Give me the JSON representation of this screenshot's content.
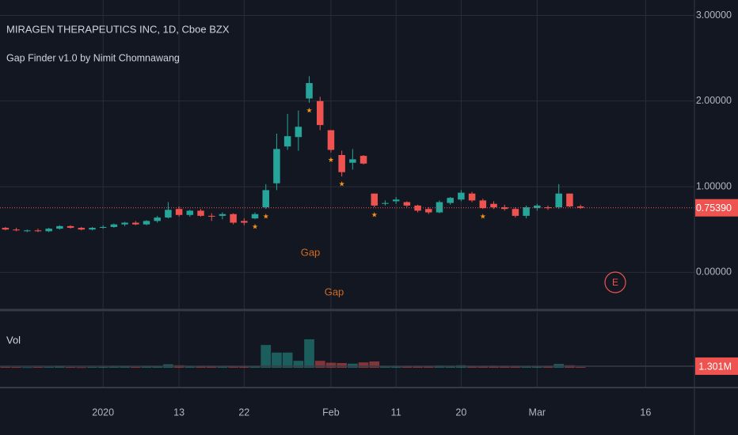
{
  "chart_data": {
    "type": "candlestick",
    "title": "MIRAGEN THERAPEUTICS INC, 1D, Cboe BZX",
    "subtitle": "Gap Finder v1.0 by Nimit Chomnawang",
    "volume_title": "Vol",
    "categories": [
      null,
      null,
      null,
      null,
      null,
      null,
      null,
      null,
      null,
      "2020",
      null,
      null,
      null,
      null,
      null,
      null,
      "13",
      null,
      null,
      null,
      null,
      null,
      "22",
      null,
      null,
      null,
      null,
      null,
      null,
      null,
      "Feb",
      null,
      null,
      null,
      null,
      null,
      "11",
      null,
      null,
      null,
      null,
      null,
      "20",
      null,
      null,
      null,
      null,
      null,
      null,
      "Mar",
      null,
      null,
      null,
      null,
      null,
      null,
      null,
      null,
      null,
      "16",
      null,
      null,
      null,
      null
    ],
    "open": [
      0.52,
      0.5,
      0.48,
      0.49,
      0.48,
      0.51,
      0.54,
      0.52,
      0.5,
      0.52,
      0.53,
      0.56,
      0.58,
      0.56,
      0.6,
      0.64,
      0.74,
      0.67,
      0.72,
      0.66,
      0.66,
      0.68,
      0.6,
      0.63,
      0.76,
      1.04,
      1.47,
      1.58,
      2.03,
      2.0,
      1.66,
      1.37,
      1.28,
      1.36,
      0.92,
      0.8,
      0.83,
      0.82,
      0.78,
      0.74,
      0.7,
      0.81,
      0.85,
      0.92,
      0.84,
      0.8,
      0.76,
      0.74,
      0.66,
      0.75,
      0.76,
      0.76,
      0.92,
      0.77,
      null,
      null,
      null,
      null,
      null,
      null,
      null,
      null,
      null,
      null
    ],
    "high": [
      0.53,
      0.52,
      0.5,
      0.51,
      0.52,
      0.55,
      0.55,
      0.53,
      0.53,
      0.55,
      0.57,
      0.59,
      0.6,
      0.61,
      0.66,
      0.82,
      0.77,
      0.73,
      0.74,
      0.69,
      0.7,
      0.69,
      0.63,
      0.7,
      1.03,
      1.62,
      1.85,
      1.89,
      2.29,
      2.05,
      1.66,
      1.42,
      1.44,
      1.37,
      0.92,
      0.84,
      0.88,
      0.83,
      0.79,
      0.76,
      0.84,
      0.88,
      0.96,
      0.94,
      0.86,
      0.83,
      0.79,
      0.76,
      0.78,
      0.8,
      0.78,
      1.03,
      0.92,
      0.79,
      null,
      null,
      null,
      null,
      null,
      null,
      null,
      null,
      null,
      null
    ],
    "low": [
      0.49,
      0.48,
      0.47,
      0.47,
      0.47,
      0.5,
      0.51,
      0.49,
      0.49,
      0.51,
      0.52,
      0.54,
      0.55,
      0.55,
      0.58,
      0.63,
      0.65,
      0.65,
      0.65,
      0.6,
      0.62,
      0.56,
      0.55,
      0.62,
      0.74,
      0.96,
      1.43,
      1.42,
      1.98,
      1.66,
      1.4,
      1.12,
      1.2,
      1.26,
      0.76,
      0.78,
      0.8,
      0.76,
      0.7,
      0.68,
      0.69,
      0.79,
      0.83,
      0.82,
      0.74,
      0.74,
      0.72,
      0.64,
      0.63,
      0.72,
      0.73,
      0.74,
      0.76,
      0.74,
      null,
      null,
      null,
      null,
      null,
      null,
      null,
      null,
      null,
      null
    ],
    "close": [
      0.5,
      0.49,
      0.49,
      0.48,
      0.51,
      0.54,
      0.52,
      0.5,
      0.52,
      0.53,
      0.56,
      0.58,
      0.56,
      0.6,
      0.64,
      0.73,
      0.67,
      0.72,
      0.66,
      0.65,
      0.68,
      0.58,
      0.58,
      0.68,
      0.96,
      1.44,
      1.59,
      1.7,
      2.21,
      1.72,
      1.43,
      1.17,
      1.32,
      1.27,
      0.78,
      0.81,
      0.85,
      0.78,
      0.72,
      0.7,
      0.82,
      0.87,
      0.93,
      0.84,
      0.75,
      0.76,
      0.74,
      0.66,
      0.76,
      0.78,
      0.75,
      0.92,
      0.77,
      0.7539,
      null,
      null,
      null,
      null,
      null,
      null,
      null,
      null,
      null,
      null
    ],
    "volume": [
      1500000,
      1200000,
      1000000,
      1300000,
      1400000,
      2000000,
      1200000,
      1000000,
      1300000,
      1500000,
      1800000,
      2200000,
      1500000,
      2000000,
      3000000,
      5500000,
      4000000,
      2500000,
      2800000,
      2000000,
      2200000,
      3000000,
      2500000,
      2000000,
      36000000,
      24000000,
      24000000,
      11000000,
      45000000,
      11000000,
      8000000,
      7500000,
      6500000,
      8500000,
      10000000,
      2500000,
      3000000,
      2000000,
      2500000,
      2200000,
      3500000,
      3000000,
      4000000,
      3000000,
      2500000,
      2000000,
      1800000,
      2500000,
      2500000,
      2000000,
      1800000,
      6000000,
      4000000,
      1301000,
      null,
      null,
      null,
      null,
      null,
      null,
      null,
      null,
      null,
      null
    ],
    "last_price_label": "0.75390",
    "last_volume_label": "1.301M",
    "up_color": "#26a69a",
    "down_color": "#ef5350",
    "ylim": [
      -0.44,
      3.18
    ],
    "yticks": [
      {
        "value": 0,
        "label": "0.00000"
      },
      {
        "value": 1,
        "label": "1.00000"
      },
      {
        "value": 2,
        "label": "2.00000"
      },
      {
        "value": 3,
        "label": "3.00000"
      }
    ],
    "volume_ylim": [
      0,
      81250000
    ],
    "grid": true,
    "gap_symbol": "★",
    "gap_marks": [
      23,
      24,
      28,
      30,
      31,
      34,
      44
    ],
    "annotations": [
      "Gap",
      "Gap"
    ],
    "earnings_marker": "E"
  }
}
